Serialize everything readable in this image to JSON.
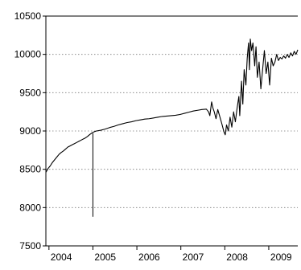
{
  "chart_data": {
    "type": "line",
    "title": "",
    "xlabel": "",
    "ylabel": "",
    "ylim": [
      7500,
      10500
    ],
    "xlim": [
      2003.95,
      2009.68
    ],
    "yticks": [
      7500,
      8000,
      8500,
      9000,
      9500,
      10000,
      10500
    ],
    "y_tick_labels": [
      "7500",
      "8000",
      "8500",
      "9000",
      "9500",
      "10000",
      "10500"
    ],
    "x_tick_labels": [
      "2004",
      "2005",
      "2006",
      "2007",
      "2008",
      "2009"
    ],
    "x_tick_positions": [
      2004.3,
      2005.3,
      2006.3,
      2007.3,
      2008.3,
      2009.3
    ],
    "grid": "horizontal dotted",
    "colors": {
      "line": "#000000",
      "grid": "#7a7a7a"
    },
    "series": [
      {
        "values": [
          [
            2003.95,
            8460
          ],
          [
            2004.0,
            8510
          ],
          [
            2004.05,
            8545
          ],
          [
            2004.1,
            8590
          ],
          [
            2004.15,
            8625
          ],
          [
            2004.2,
            8660
          ],
          [
            2004.25,
            8695
          ],
          [
            2004.3,
            8720
          ],
          [
            2004.35,
            8740
          ],
          [
            2004.4,
            8765
          ],
          [
            2004.45,
            8790
          ],
          [
            2004.5,
            8805
          ],
          [
            2004.55,
            8820
          ],
          [
            2004.6,
            8835
          ],
          [
            2004.65,
            8850
          ],
          [
            2004.7,
            8865
          ],
          [
            2004.75,
            8880
          ],
          [
            2004.8,
            8895
          ],
          [
            2004.85,
            8910
          ],
          [
            2004.9,
            8930
          ],
          [
            2004.95,
            8955
          ],
          [
            2005.0,
            8975
          ],
          [
            2005.05,
            8990
          ],
          [
            2005.1,
            9000
          ],
          [
            2005.2,
            9010
          ],
          [
            2005.3,
            9025
          ],
          [
            2005.4,
            9045
          ],
          [
            2005.5,
            9060
          ],
          [
            2005.6,
            9080
          ],
          [
            2005.7,
            9095
          ],
          [
            2005.8,
            9110
          ],
          [
            2005.9,
            9120
          ],
          [
            2006.0,
            9135
          ],
          [
            2006.1,
            9145
          ],
          [
            2006.2,
            9155
          ],
          [
            2006.3,
            9160
          ],
          [
            2006.4,
            9170
          ],
          [
            2006.5,
            9180
          ],
          [
            2006.6,
            9190
          ],
          [
            2006.7,
            9195
          ],
          [
            2006.8,
            9200
          ],
          [
            2006.9,
            9205
          ],
          [
            2007.0,
            9215
          ],
          [
            2007.1,
            9230
          ],
          [
            2007.2,
            9245
          ],
          [
            2007.3,
            9260
          ],
          [
            2007.4,
            9270
          ],
          [
            2007.5,
            9280
          ],
          [
            2007.6,
            9285
          ],
          [
            2007.65,
            9250
          ],
          [
            2007.68,
            9200
          ],
          [
            2007.72,
            9380
          ],
          [
            2007.75,
            9300
          ],
          [
            2007.78,
            9250
          ],
          [
            2007.82,
            9160
          ],
          [
            2007.86,
            9280
          ],
          [
            2007.9,
            9200
          ],
          [
            2007.95,
            9100
          ],
          [
            2008.0,
            8990
          ],
          [
            2008.03,
            8950
          ],
          [
            2008.06,
            9080
          ],
          [
            2008.1,
            9000
          ],
          [
            2008.14,
            9180
          ],
          [
            2008.18,
            9050
          ],
          [
            2008.22,
            9250
          ],
          [
            2008.26,
            9120
          ],
          [
            2008.3,
            9300
          ],
          [
            2008.34,
            9450
          ],
          [
            2008.36,
            9200
          ],
          [
            2008.4,
            9650
          ],
          [
            2008.43,
            9350
          ],
          [
            2008.46,
            9800
          ],
          [
            2008.5,
            9600
          ],
          [
            2008.53,
            9950
          ],
          [
            2008.56,
            10150
          ],
          [
            2008.58,
            9800
          ],
          [
            2008.6,
            10200
          ],
          [
            2008.63,
            10050
          ],
          [
            2008.66,
            10150
          ],
          [
            2008.7,
            9850
          ],
          [
            2008.73,
            10100
          ],
          [
            2008.76,
            9700
          ],
          [
            2008.8,
            9900
          ],
          [
            2008.84,
            9550
          ],
          [
            2008.88,
            9800
          ],
          [
            2008.92,
            10050
          ],
          [
            2008.96,
            9750
          ],
          [
            2009.0,
            9900
          ],
          [
            2009.04,
            9600
          ],
          [
            2009.08,
            9950
          ],
          [
            2009.12,
            9850
          ],
          [
            2009.16,
            9900
          ],
          [
            2009.2,
            10000
          ],
          [
            2009.24,
            9920
          ],
          [
            2009.28,
            9960
          ],
          [
            2009.32,
            9940
          ],
          [
            2009.36,
            9980
          ],
          [
            2009.4,
            9950
          ],
          [
            2009.44,
            10000
          ],
          [
            2009.48,
            9960
          ],
          [
            2009.52,
            10020
          ],
          [
            2009.56,
            9980
          ],
          [
            2009.6,
            10040
          ],
          [
            2009.64,
            10000
          ],
          [
            2009.68,
            10060
          ]
        ]
      }
    ],
    "spike": {
      "x": 2005.02,
      "y_from": 8970,
      "y_to": 7880
    }
  }
}
